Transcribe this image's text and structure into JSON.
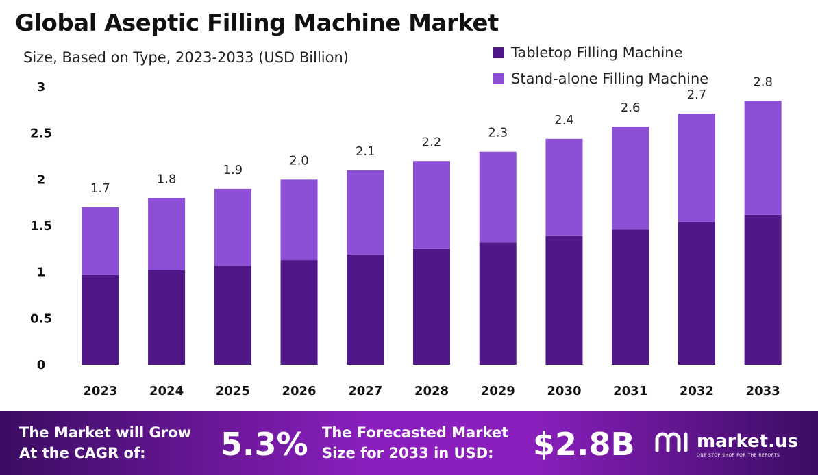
{
  "title": "Global Aseptic Filling Machine Market",
  "subtitle": "Size, Based on Type, 2023-2033 (USD Billion)",
  "colors": {
    "tabletop": "#4f1787",
    "standalone": "#8c4fd6",
    "footer_dark": "#3b0c63",
    "footer_light": "#8a1fbd"
  },
  "chart_data": {
    "type": "bar",
    "stacked": true,
    "categories": [
      "2023",
      "2024",
      "2025",
      "2026",
      "2027",
      "2028",
      "2029",
      "2030",
      "2031",
      "2032",
      "2033"
    ],
    "series": [
      {
        "name": "Tabletop Filling Machine",
        "values": [
          0.97,
          1.02,
          1.07,
          1.13,
          1.19,
          1.25,
          1.32,
          1.39,
          1.46,
          1.54,
          1.62
        ]
      },
      {
        "name": "Stand-alone Filling Machine",
        "values": [
          0.73,
          0.78,
          0.83,
          0.87,
          0.91,
          0.95,
          0.98,
          1.05,
          1.11,
          1.17,
          1.23
        ]
      }
    ],
    "totals": [
      "1.7",
      "1.8",
      "1.9",
      "2.0",
      "2.1",
      "2.2",
      "2.3",
      "2.4",
      "2.6",
      "2.7",
      "2.8"
    ],
    "y_ticks": [
      "0",
      "0.5",
      "1",
      "1.5",
      "2",
      "2.5",
      "3"
    ],
    "ylim": [
      0,
      3
    ],
    "grid": false,
    "legend_position": "top-right"
  },
  "footer": {
    "cagr_label_line1": "The Market will Grow",
    "cagr_label_line2": "At the CAGR of:",
    "cagr_value": "5.3%",
    "forecast_label_line1": "The Forecasted Market",
    "forecast_label_line2": "Size for 2033 in USD:",
    "forecast_value": "$2.8B",
    "logo_text": "market.us",
    "logo_tagline": "ONE STOP SHOP FOR THE REPORTS"
  }
}
